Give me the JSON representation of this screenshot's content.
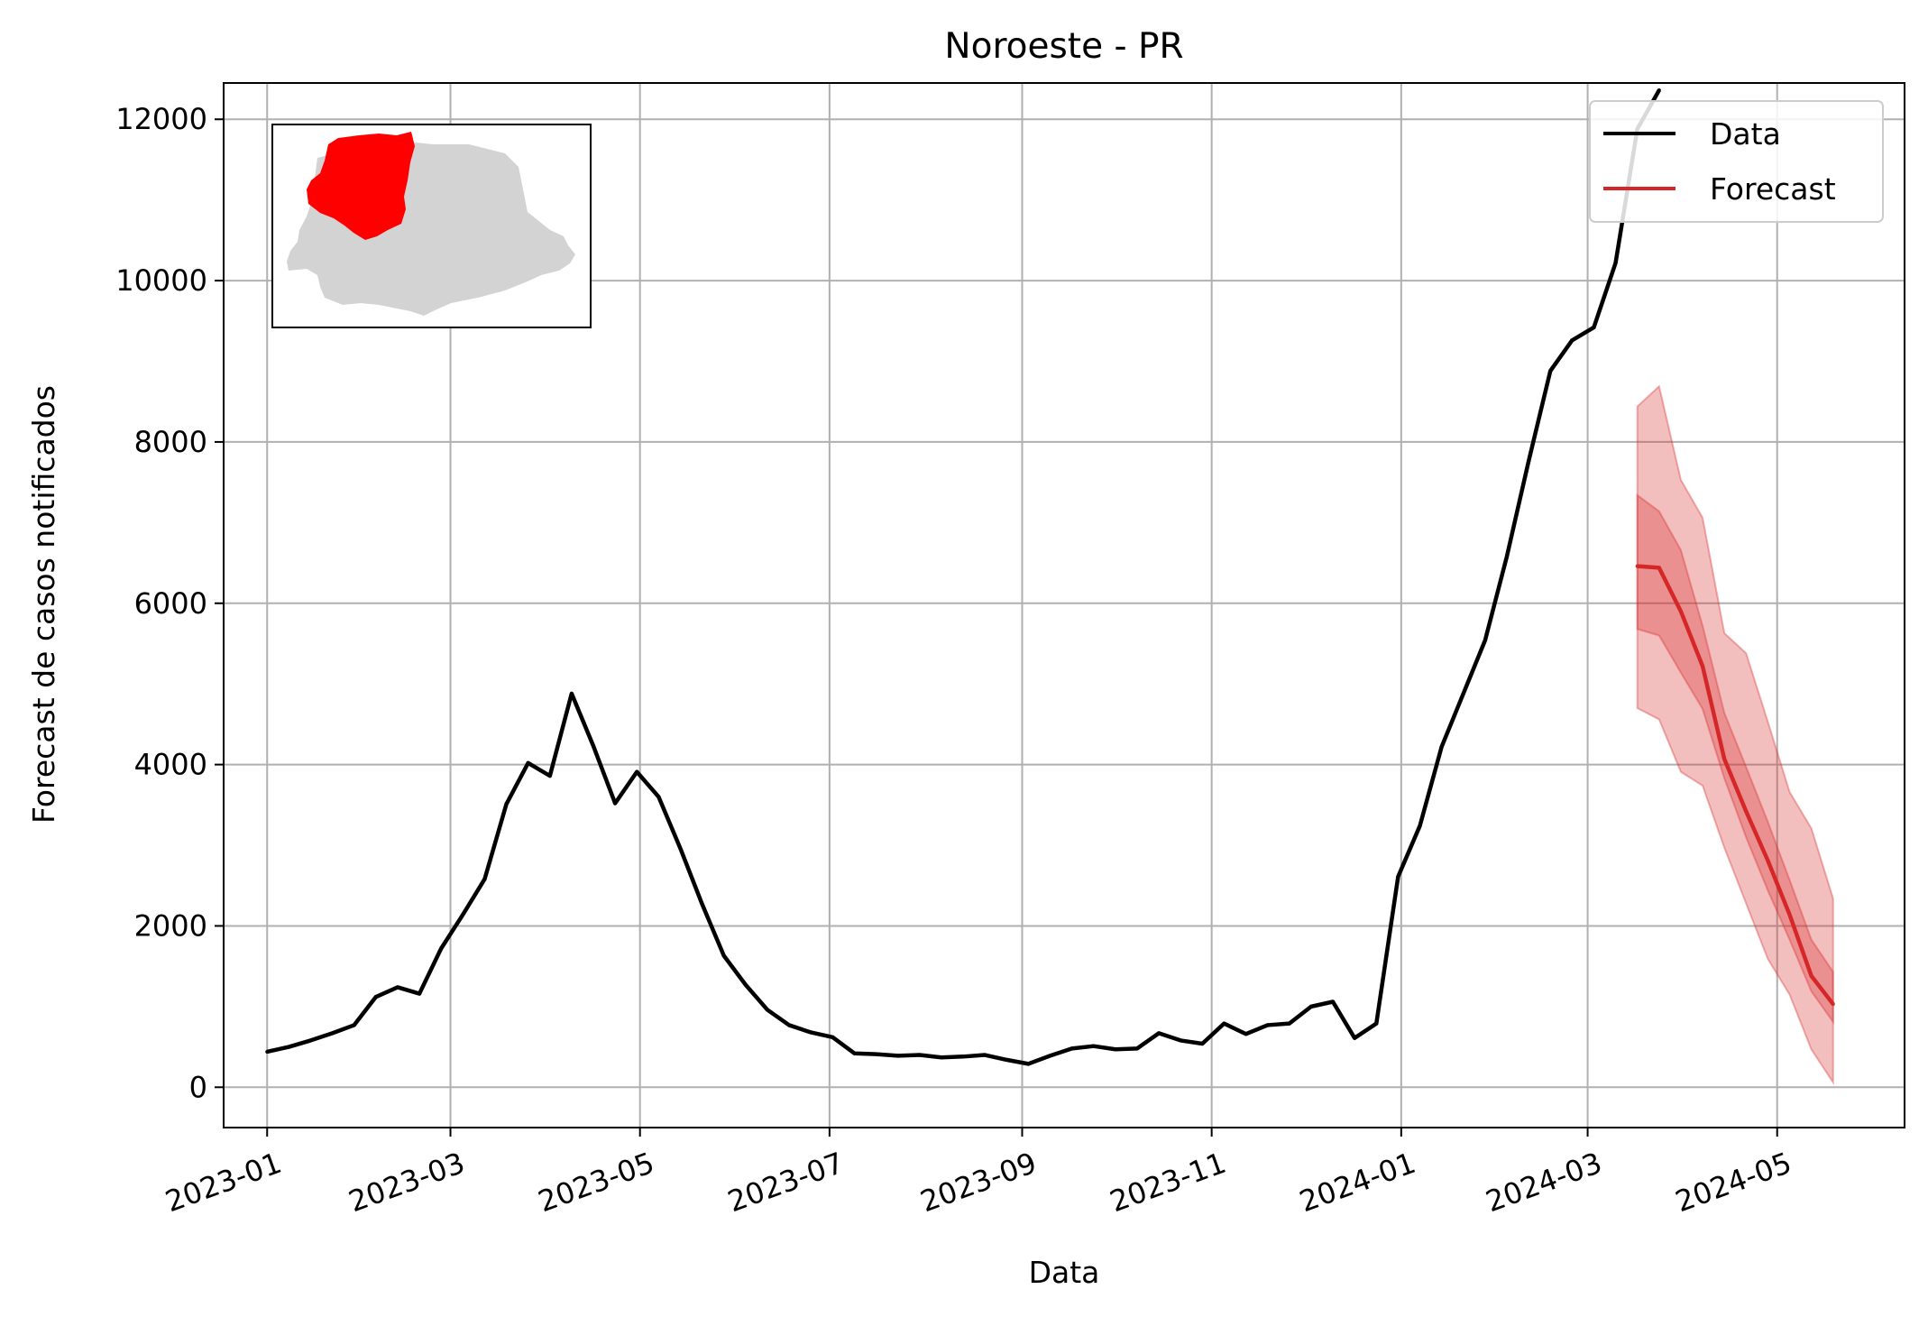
{
  "chart_data": {
    "type": "line",
    "title": "Noroeste - PR",
    "xlabel": "Data",
    "ylabel": "Forecast de casos notificados",
    "ylim": [
      -500,
      12450
    ],
    "xlim": [
      "2022-12-18",
      "2024-06-11"
    ],
    "grid": true,
    "legend_position": "top-right",
    "x_tick_labels": [
      "2023-01",
      "2023-03",
      "2023-05",
      "2023-07",
      "2023-09",
      "2023-11",
      "2024-01",
      "2024-03",
      "2024-05"
    ],
    "x_tick_dates": [
      "2023-01-01",
      "2023-03-01",
      "2023-05-01",
      "2023-07-01",
      "2023-09-01",
      "2023-11-01",
      "2024-01-01",
      "2024-03-01",
      "2024-05-01"
    ],
    "y_ticks": [
      0,
      2000,
      4000,
      6000,
      8000,
      10000,
      12000
    ],
    "y_tick_labels": [
      "0",
      "2000",
      "4000",
      "6000",
      "8000",
      "10000",
      "12000"
    ],
    "legend": [
      "Data",
      "Forecast"
    ],
    "series": [
      {
        "name": "Data",
        "color": "#000000",
        "x": [
          "2023-01-01",
          "2023-01-08",
          "2023-01-15",
          "2023-01-22",
          "2023-01-29",
          "2023-02-05",
          "2023-02-12",
          "2023-02-19",
          "2023-02-26",
          "2023-03-05",
          "2023-03-12",
          "2023-03-19",
          "2023-03-26",
          "2023-04-02",
          "2023-04-09",
          "2023-04-16",
          "2023-04-23",
          "2023-04-30",
          "2023-05-07",
          "2023-05-14",
          "2023-05-21",
          "2023-05-28",
          "2023-06-04",
          "2023-06-11",
          "2023-06-18",
          "2023-06-25",
          "2023-07-02",
          "2023-07-09",
          "2023-07-16",
          "2023-07-23",
          "2023-07-30",
          "2023-08-06",
          "2023-08-13",
          "2023-08-20",
          "2023-08-27",
          "2023-09-03",
          "2023-09-10",
          "2023-09-17",
          "2023-09-24",
          "2023-10-01",
          "2023-10-08",
          "2023-10-15",
          "2023-10-22",
          "2023-10-29",
          "2023-11-05",
          "2023-11-12",
          "2023-11-19",
          "2023-11-26",
          "2023-12-03",
          "2023-12-10",
          "2023-12-17",
          "2023-12-24",
          "2023-12-31",
          "2024-01-07",
          "2024-01-14",
          "2024-01-21",
          "2024-01-28",
          "2024-02-04",
          "2024-02-11",
          "2024-02-18",
          "2024-02-25",
          "2024-03-03",
          "2024-03-10",
          "2024-03-17",
          "2024-03-24"
        ],
        "values": [
          440,
          500,
          580,
          670,
          770,
          1120,
          1240,
          1160,
          1720,
          2140,
          2580,
          3510,
          4020,
          3860,
          4880,
          4230,
          3520,
          3910,
          3600,
          2960,
          2270,
          1630,
          1270,
          960,
          770,
          680,
          620,
          420,
          410,
          390,
          400,
          370,
          380,
          400,
          340,
          290,
          390,
          480,
          510,
          470,
          480,
          670,
          580,
          540,
          790,
          660,
          770,
          790,
          1000,
          1060,
          610,
          790,
          2610,
          3240,
          4220,
          4880,
          5540,
          6580,
          7760,
          8880,
          9260,
          9420,
          10220,
          11880,
          12360
        ]
      },
      {
        "name": "Forecast",
        "color": "#d62728",
        "x": [
          "2024-03-17",
          "2024-03-24",
          "2024-03-31",
          "2024-04-07",
          "2024-04-14",
          "2024-04-21",
          "2024-04-28",
          "2024-05-05",
          "2024-05-12",
          "2024-05-19"
        ],
        "values": [
          6460,
          6440,
          5900,
          5220,
          4070,
          3420,
          2810,
          2140,
          1380,
          1030
        ],
        "lower_inner": [
          5680,
          5600,
          5140,
          4690,
          3830,
          3100,
          2440,
          1830,
          1190,
          810
        ],
        "upper_inner": [
          7340,
          7140,
          6660,
          5720,
          4640,
          3970,
          3290,
          2570,
          1830,
          1430
        ],
        "lower_outer": [
          4700,
          4560,
          3910,
          3740,
          2970,
          2280,
          1590,
          1150,
          470,
          60
        ],
        "upper_outer": [
          8440,
          8690,
          7530,
          7060,
          5630,
          5380,
          4530,
          3660,
          3210,
          2340
        ]
      }
    ],
    "inset_map": {
      "description_label": "Paraná",
      "highlight_color": "#ff0000",
      "base_color": "#d3d3d3"
    }
  }
}
